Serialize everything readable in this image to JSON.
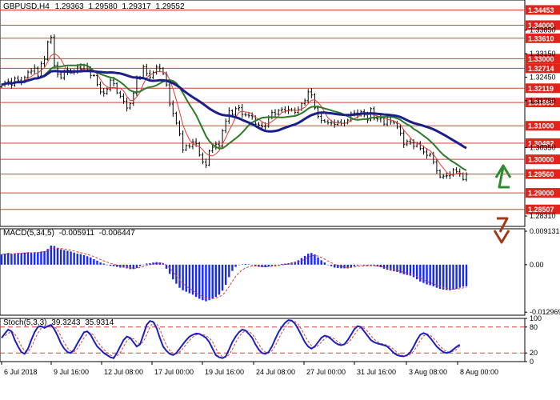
{
  "chart_data": [
    {
      "type": "candlestick",
      "header": {
        "symbol": "GBPUSD,H4",
        "ohlc": [
          "1.29363",
          "1.29580",
          "1.29317",
          "1.29552"
        ]
      },
      "ylim": [
        1.28,
        1.3475
      ],
      "levels": [
        {
          "value": 1.34453,
          "label": "1.34453"
        },
        {
          "value": 1.34,
          "label": "1.34000"
        },
        {
          "value": 1.3361,
          "label": "1.33610"
        },
        {
          "value": 1.33,
          "label": "1.33000"
        },
        {
          "value": 1.32714,
          "label": "1.32714"
        },
        {
          "value": 1.32119,
          "label": "1.32119"
        },
        {
          "value": 1.31695,
          "label": "1.31695"
        },
        {
          "value": 1.31,
          "label": "1.31000"
        },
        {
          "value": 1.30482,
          "label": "1.30482"
        },
        {
          "value": 1.3,
          "label": "1.30000"
        },
        {
          "value": 1.2956,
          "label": "1.29560"
        },
        {
          "value": 1.29,
          "label": "1.29000"
        },
        {
          "value": 1.28507,
          "label": "1.28507"
        }
      ],
      "axis_ticks": [
        {
          "value": 1.3385,
          "label": "1.33850"
        },
        {
          "value": 1.3315,
          "label": "1.33150"
        },
        {
          "value": 1.3245,
          "label": "1.32450"
        },
        {
          "value": 1.3175,
          "label": "1.31750"
        },
        {
          "value": 1.3035,
          "label": "1.30350"
        },
        {
          "value": 1.2831,
          "label": "1.28310"
        }
      ],
      "close": [
        1.3222,
        1.3228,
        1.3232,
        1.3221,
        1.3242,
        1.3236,
        1.323,
        1.3245,
        1.326,
        1.3263,
        1.3272,
        1.3248,
        1.3285,
        1.3298,
        1.335,
        1.3364,
        1.328,
        1.3254,
        1.3243,
        1.326,
        1.3266,
        1.3258,
        1.3263,
        1.3275,
        1.3269,
        1.328,
        1.3267,
        1.325,
        1.325,
        1.3223,
        1.3201,
        1.3197,
        1.3209,
        1.3236,
        1.3226,
        1.3198,
        1.3188,
        1.3173,
        1.3153,
        1.3166,
        1.3197,
        1.324,
        1.3245,
        1.3276,
        1.3256,
        1.3244,
        1.3259,
        1.3275,
        1.3271,
        1.3255,
        1.3222,
        1.3165,
        1.3137,
        1.3108,
        1.3076,
        1.3028,
        1.3041,
        1.3038,
        1.3052,
        1.3047,
        1.3013,
        1.2992,
        1.2983,
        1.3025,
        1.3036,
        1.3045,
        1.304,
        1.3085,
        1.3114,
        1.3145,
        1.3134,
        1.3151,
        1.3154,
        1.3134,
        1.3132,
        1.313,
        1.3127,
        1.3105,
        1.3102,
        1.3098,
        1.3099,
        1.3126,
        1.314,
        1.3135,
        1.3146,
        1.3149,
        1.3145,
        1.3148,
        1.3147,
        1.314,
        1.3148,
        1.3166,
        1.3175,
        1.3201,
        1.3192,
        1.3153,
        1.3128,
        1.3116,
        1.3112,
        1.3109,
        1.3108,
        1.3104,
        1.3112,
        1.3107,
        1.3108,
        1.3117,
        1.3136,
        1.3138,
        1.3132,
        1.3142,
        1.3132,
        1.3117,
        1.3151,
        1.3122,
        1.312,
        1.3123,
        1.3105,
        1.3125,
        1.3112,
        1.3108,
        1.3096,
        1.3078,
        1.3044,
        1.3054,
        1.305,
        1.3039,
        1.3048,
        1.3032,
        1.3022,
        1.3012,
        1.3015,
        1.2992,
        1.2966,
        1.2947,
        1.295,
        1.2951,
        1.2953,
        1.2969,
        1.2963,
        1.2957,
        1.294,
        1.2955
      ]
    },
    {
      "type": "histogram",
      "header": {
        "name": "MACD(5,34,5)",
        "values": [
          "-0.005911",
          "-0.006447"
        ]
      },
      "ylim": [
        -0.0138,
        0.0098
      ],
      "ticks": [
        {
          "value": 0.009131,
          "label": "0.009131"
        },
        {
          "value": 0.0,
          "label": "0.00"
        },
        {
          "value": -0.012969,
          "label": "-0.012969"
        }
      ],
      "values": [
        0.0028,
        0.003,
        0.0032,
        0.0029,
        0.0031,
        0.0032,
        0.0032,
        0.0033,
        0.0034,
        0.0033,
        0.0034,
        0.0034,
        0.0036,
        0.0037,
        0.0043,
        0.0052,
        0.0051,
        0.0045,
        0.0042,
        0.004,
        0.0038,
        0.0036,
        0.0033,
        0.003,
        0.0029,
        0.0026,
        0.0023,
        0.002,
        0.0015,
        0.0011,
        0.0006,
        0.0003,
        0.0,
        -0.0003,
        -0.0004,
        -0.0006,
        -0.0008,
        -0.0008,
        -0.001,
        -0.0012,
        -0.0012,
        -0.0009,
        -0.0004,
        0.0,
        0.0003,
        0.0004,
        0.0006,
        0.0007,
        0.0006,
        0.0003,
        -0.0011,
        -0.0025,
        -0.004,
        -0.0052,
        -0.0063,
        -0.007,
        -0.0074,
        -0.0078,
        -0.0082,
        -0.0088,
        -0.0093,
        -0.0097,
        -0.01,
        -0.0097,
        -0.0092,
        -0.0088,
        -0.0082,
        -0.0071,
        -0.0055,
        -0.0034,
        -0.0017,
        -0.0006,
        0.0,
        0.0001,
        0.0002,
        0.0001,
        0.0,
        -0.0003,
        -0.0006,
        -0.0007,
        -0.0007,
        -0.0005,
        -0.0003,
        -0.0002,
        0.0,
        0.0002,
        0.0003,
        0.0004,
        0.0006,
        0.0008,
        0.0012,
        0.0018,
        0.0024,
        0.003,
        0.0032,
        0.0028,
        0.002,
        0.0012,
        0.0006,
        0.0,
        -0.0004,
        -0.0008,
        -0.0009,
        -0.001,
        -0.001,
        -0.001,
        -0.0008,
        -0.0004,
        -0.0002,
        -0.0001,
        -0.0002,
        -0.0003,
        -0.0002,
        -0.0003,
        -0.0005,
        -0.0007,
        -0.0011,
        -0.0014,
        -0.0016,
        -0.0018,
        -0.002,
        -0.0023,
        -0.0026,
        -0.0028,
        -0.003,
        -0.0034,
        -0.004,
        -0.0046,
        -0.005,
        -0.0054,
        -0.0056,
        -0.0059,
        -0.0063,
        -0.0066,
        -0.0068,
        -0.0069,
        -0.007,
        -0.0068,
        -0.0066,
        -0.0063,
        -0.006,
        -0.0059
      ]
    },
    {
      "type": "line",
      "header": {
        "name": "Stoch(5,3,3)",
        "values": [
          "39.3243",
          "35.9314"
        ]
      },
      "ylim": [
        0,
        100
      ],
      "ticks": [
        {
          "value": 100,
          "label": "100"
        },
        {
          "value": 80,
          "label": "80"
        },
        {
          "value": 20,
          "label": "20"
        },
        {
          "value": 0,
          "label": "0"
        }
      ],
      "levels": [
        80,
        20
      ],
      "k": [
        55,
        65,
        74,
        70,
        50,
        35,
        22,
        18,
        30,
        50,
        68,
        80,
        82,
        78,
        82,
        85,
        75,
        60,
        42,
        30,
        22,
        20,
        28,
        42,
        55,
        68,
        70,
        62,
        48,
        35,
        28,
        20,
        15,
        10,
        8,
        20,
        35,
        50,
        58,
        55,
        45,
        35,
        40,
        62,
        85,
        94,
        92,
        78,
        55,
        35,
        25,
        18,
        15,
        20,
        30,
        40,
        50,
        58,
        62,
        65,
        64,
        60,
        55,
        45,
        30,
        15,
        10,
        8,
        12,
        28,
        45,
        58,
        68,
        74,
        72,
        64,
        55,
        40,
        28,
        20,
        18,
        22,
        35,
        52,
        68,
        80,
        90,
        96,
        95,
        88,
        75,
        60,
        45,
        35,
        30,
        35,
        45,
        55,
        60,
        58,
        52,
        45,
        40,
        38,
        40,
        50,
        62,
        75,
        82,
        80,
        70,
        60,
        50,
        45,
        42,
        40,
        38,
        35,
        28,
        20,
        15,
        13,
        12,
        15,
        22,
        35,
        50,
        62,
        66,
        63,
        55,
        45,
        35,
        28,
        22,
        20,
        22,
        28,
        34,
        39
      ],
      "d": [
        55,
        60,
        65,
        70,
        64,
        52,
        36,
        25,
        23,
        33,
        50,
        66,
        77,
        80,
        81,
        82,
        81,
        73,
        59,
        44,
        31,
        24,
        23,
        30,
        42,
        55,
        64,
        67,
        60,
        48,
        37,
        28,
        21,
        15,
        11,
        13,
        21,
        35,
        48,
        54,
        53,
        46,
        40,
        46,
        62,
        80,
        90,
        88,
        75,
        56,
        38,
        26,
        19,
        18,
        22,
        30,
        40,
        49,
        57,
        62,
        64,
        63,
        60,
        55,
        46,
        30,
        18,
        11,
        10,
        16,
        28,
        44,
        57,
        67,
        71,
        70,
        64,
        53,
        41,
        29,
        22,
        20,
        25,
        36,
        52,
        67,
        79,
        89,
        94,
        93,
        86,
        74,
        60,
        47,
        37,
        33,
        37,
        45,
        53,
        58,
        57,
        52,
        46,
        41,
        39,
        43,
        51,
        62,
        73,
        79,
        77,
        70,
        60,
        52,
        46,
        42,
        40,
        38,
        34,
        28,
        21,
        16,
        13,
        13,
        17,
        24,
        36,
        49,
        59,
        64,
        61,
        54,
        46,
        36,
        28,
        23,
        22,
        24,
        28,
        36
      ]
    }
  ],
  "ma": [
    {
      "name": "fast",
      "color": "#e03c31",
      "period": 5
    },
    {
      "name": "mid",
      "color": "#2d7a28",
      "period": 13
    },
    {
      "name": "slow",
      "color": "#1a1f8a",
      "period": 30
    }
  ],
  "macd_signal_color": "#e03c31",
  "macd_bar_color": "#1428ff",
  "stoch_k_color": "#1a1fbf",
  "stoch_d_color": "#e03c31",
  "level_color": "#e03c31",
  "up_color": "#000000",
  "down_color": "#000000",
  "flag_color": "#e0241b",
  "arrows": [
    {
      "direction": "up",
      "color": "#2f8a32"
    },
    {
      "direction": "down",
      "color": "#a03a1a"
    }
  ],
  "x_axis": [
    "6 Jul 2018",
    "9 Jul 16:00",
    "12 Jul 08:00",
    "17 Jul 00:00",
    "19 Jul 16:00",
    "24 Jul 08:00",
    "27 Jul 00:00",
    "31 Jul 16:00",
    "3 Aug 08:00",
    "8 Aug 00:00"
  ]
}
